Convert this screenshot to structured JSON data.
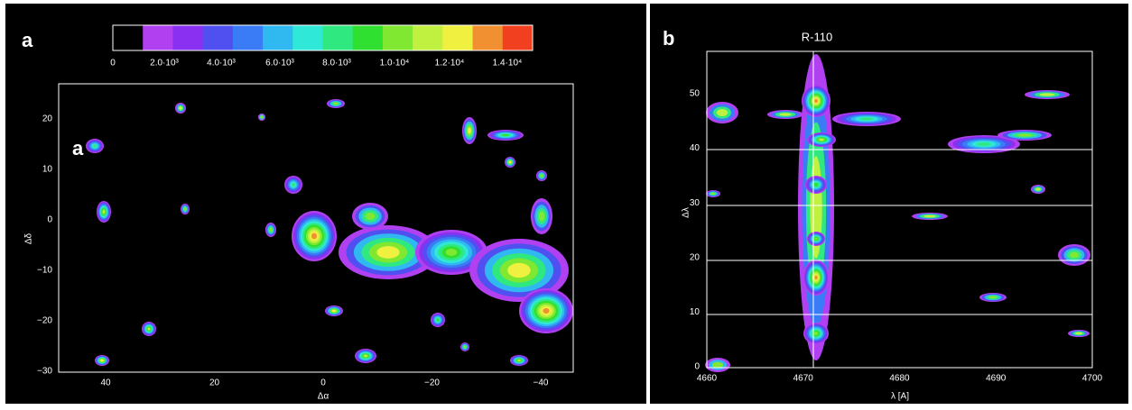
{
  "panel_a": {
    "label": "a",
    "inset_label": "a",
    "colorbar_ticks": [
      "0",
      "2.0·10³",
      "4.0·10³",
      "6.0·10³",
      "8.0·10³",
      "1.0·10⁴",
      "1.2·10⁴",
      "1.4·10⁴"
    ],
    "x_ticks": [
      "40",
      "20",
      "0",
      "−20",
      "−40"
    ],
    "x_label": "Δα",
    "y_ticks": [
      "20",
      "10",
      "0",
      "−10",
      "−20",
      "−30"
    ],
    "y_label": "Δδ"
  },
  "panel_b": {
    "label": "b",
    "title": "R-110",
    "x_ticks": [
      "4660",
      "4670",
      "4680",
      "4690",
      "4700"
    ],
    "x_label": "λ [A]",
    "y_ticks": [
      "0",
      "10",
      "20",
      "30",
      "40",
      "50"
    ],
    "y_label": "Δλ"
  }
}
